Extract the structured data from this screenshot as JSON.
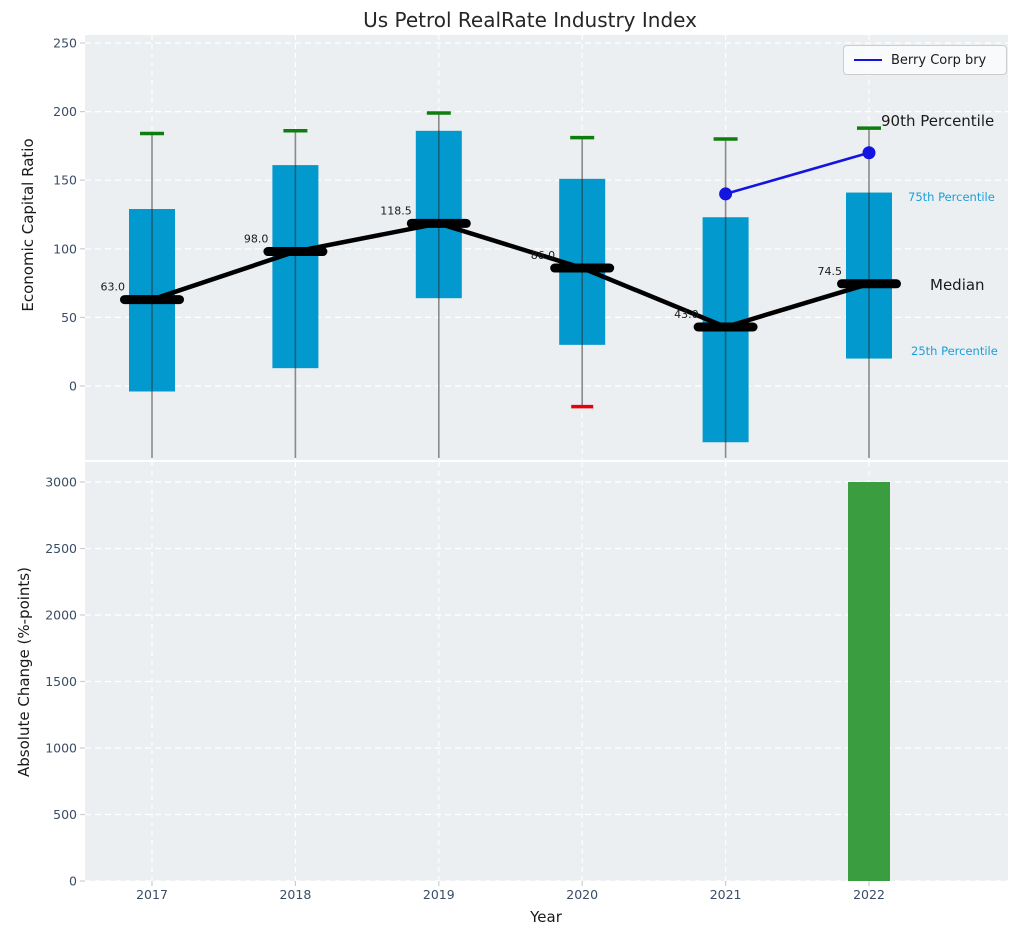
{
  "title": "Us Petrol RealRate Industry Index",
  "colors": {
    "box_fill": "#0299ce",
    "high_cap": "#0e7d0e",
    "low_cap": "#e8000b",
    "median": "#000000",
    "berry_line": "#1414e0",
    "bottom_bar": "#3a9e41",
    "axes_background": "#eceff1",
    "gridline": "#ffffff",
    "tick_label": "#3b4d66",
    "percentile_annotation": "#1c9ed9"
  },
  "chart_data": [
    {
      "type": "box",
      "title": "Us Petrol RealRate Industry Index",
      "ylabel": "Economic Capital Ratio",
      "xlabel": "Year",
      "ylim": [
        -60,
        255
      ],
      "yticks": [
        0,
        50,
        100,
        150,
        200,
        250
      ],
      "grid": true,
      "legend_position": "upper right",
      "categories": [
        "2017",
        "2018",
        "2019",
        "2020",
        "2021",
        "2022"
      ],
      "boxes": [
        {
          "year": "2017",
          "whisker_high": 184,
          "q3": 129,
          "median": 63.0,
          "q1": -4,
          "whisker_low": null
        },
        {
          "year": "2018",
          "whisker_high": 186,
          "q3": 161,
          "median": 98.0,
          "q1": 13,
          "whisker_low": null
        },
        {
          "year": "2019",
          "whisker_high": 199,
          "q3": 186,
          "median": 118.5,
          "q1": 64,
          "whisker_low": null
        },
        {
          "year": "2020",
          "whisker_high": 181,
          "q3": 151,
          "median": 86.0,
          "q1": 30,
          "whisker_low": -15
        },
        {
          "year": "2021",
          "whisker_high": 180,
          "q3": 123,
          "median": 43.0,
          "q1": -41,
          "whisker_low": null
        },
        {
          "year": "2022",
          "whisker_high": 188,
          "q3": 141,
          "median": 74.5,
          "q1": 20,
          "whisker_low": null
        }
      ],
      "median_labels": [
        "63.0",
        "98.0",
        "118.5",
        "86.0",
        "43.0",
        "74.5"
      ],
      "series": [
        {
          "name": "Berry Corp bry",
          "x": [
            "2021",
            "2022"
          ],
          "y": [
            140,
            170
          ],
          "color": "#1414e0"
        }
      ],
      "annotations": [
        {
          "id": "p90",
          "label": "90th Percentile"
        },
        {
          "id": "p75",
          "label": "75th Percentile"
        },
        {
          "id": "median",
          "label": "Median"
        },
        {
          "id": "p25",
          "label": "25th Percentile"
        }
      ]
    },
    {
      "type": "bar",
      "ylabel": "Absolute Change (%-points)",
      "xlabel": "Year",
      "ylim": [
        0,
        3000
      ],
      "yticks": [
        0,
        500,
        1000,
        1500,
        2000,
        2500,
        3000
      ],
      "grid": true,
      "categories": [
        "2017",
        "2018",
        "2019",
        "2020",
        "2021",
        "2022"
      ],
      "values": [
        0,
        0,
        0,
        0,
        0,
        3000
      ]
    }
  ]
}
